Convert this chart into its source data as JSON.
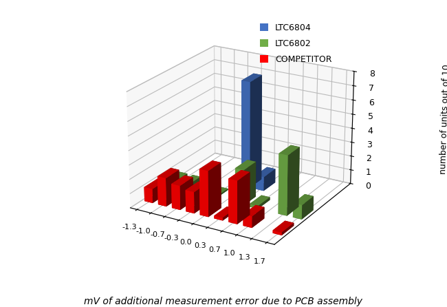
{
  "categories": [
    "-1.3",
    "-1.0",
    "-0.7",
    "-0.3",
    "0.0",
    "0.3",
    "0.7",
    "1.0",
    "1.3",
    "1.7"
  ],
  "series": {
    "LTC6804": [
      0,
      0,
      0,
      0,
      7.5,
      1,
      0,
      0,
      0,
      0
    ],
    "LTC6802": [
      0.5,
      0.5,
      0.3,
      0.1,
      0,
      2.5,
      0.2,
      0,
      4.2,
      1
    ],
    "COMPETITOR": [
      1,
      2,
      1.7,
      1.5,
      3.2,
      0.2,
      3,
      0.8,
      0,
      0.2
    ]
  },
  "colors": {
    "LTC6804": "#4472C4",
    "LTC6802": "#70AD47",
    "COMPETITOR": "#FF0000"
  },
  "ylabel": "number of units out of 10",
  "xlabel": "mV of additional measurement error due to PCB assembly",
  "zlim": [
    0,
    8
  ],
  "zticks": [
    0,
    1,
    2,
    3,
    4,
    5,
    6,
    7,
    8
  ],
  "background_color": "#FFFFFF",
  "pane_color": "#E8E8E8",
  "legend_order": [
    "LTC6804",
    "LTC6802",
    "COMPETITOR"
  ],
  "elev": 22,
  "azim": -60,
  "bar_width": 0.6,
  "bar_depth": 0.6
}
